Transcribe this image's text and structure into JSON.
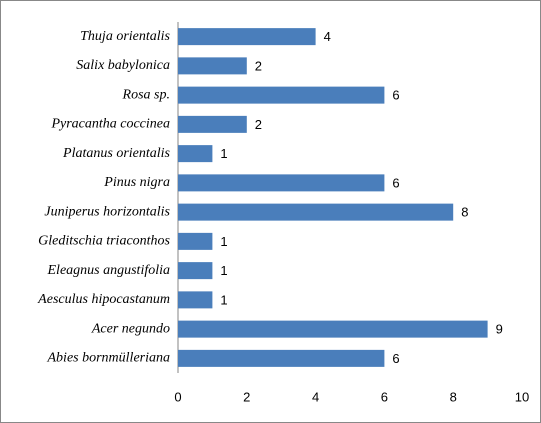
{
  "chart_data": {
    "type": "barh",
    "categories": [
      "Thuja orientalis",
      "Salix babylonica",
      "Rosa sp.",
      "Pyracantha coccinea",
      "Platanus orientalis",
      "Pinus nigra",
      "Juniperus horizontalis",
      "Gleditschia triaconthos",
      "Eleagnus angustifolia",
      "Aesculus hipocastanum",
      "Acer negundo",
      "Abies bornmülleriana"
    ],
    "values": [
      4,
      2,
      6,
      2,
      1,
      6,
      8,
      1,
      1,
      1,
      9,
      6
    ],
    "color": "#4a7ebb",
    "xlim": [
      0,
      10
    ],
    "xticks": [
      0,
      2,
      4,
      6,
      8,
      10
    ],
    "grid": false
  }
}
